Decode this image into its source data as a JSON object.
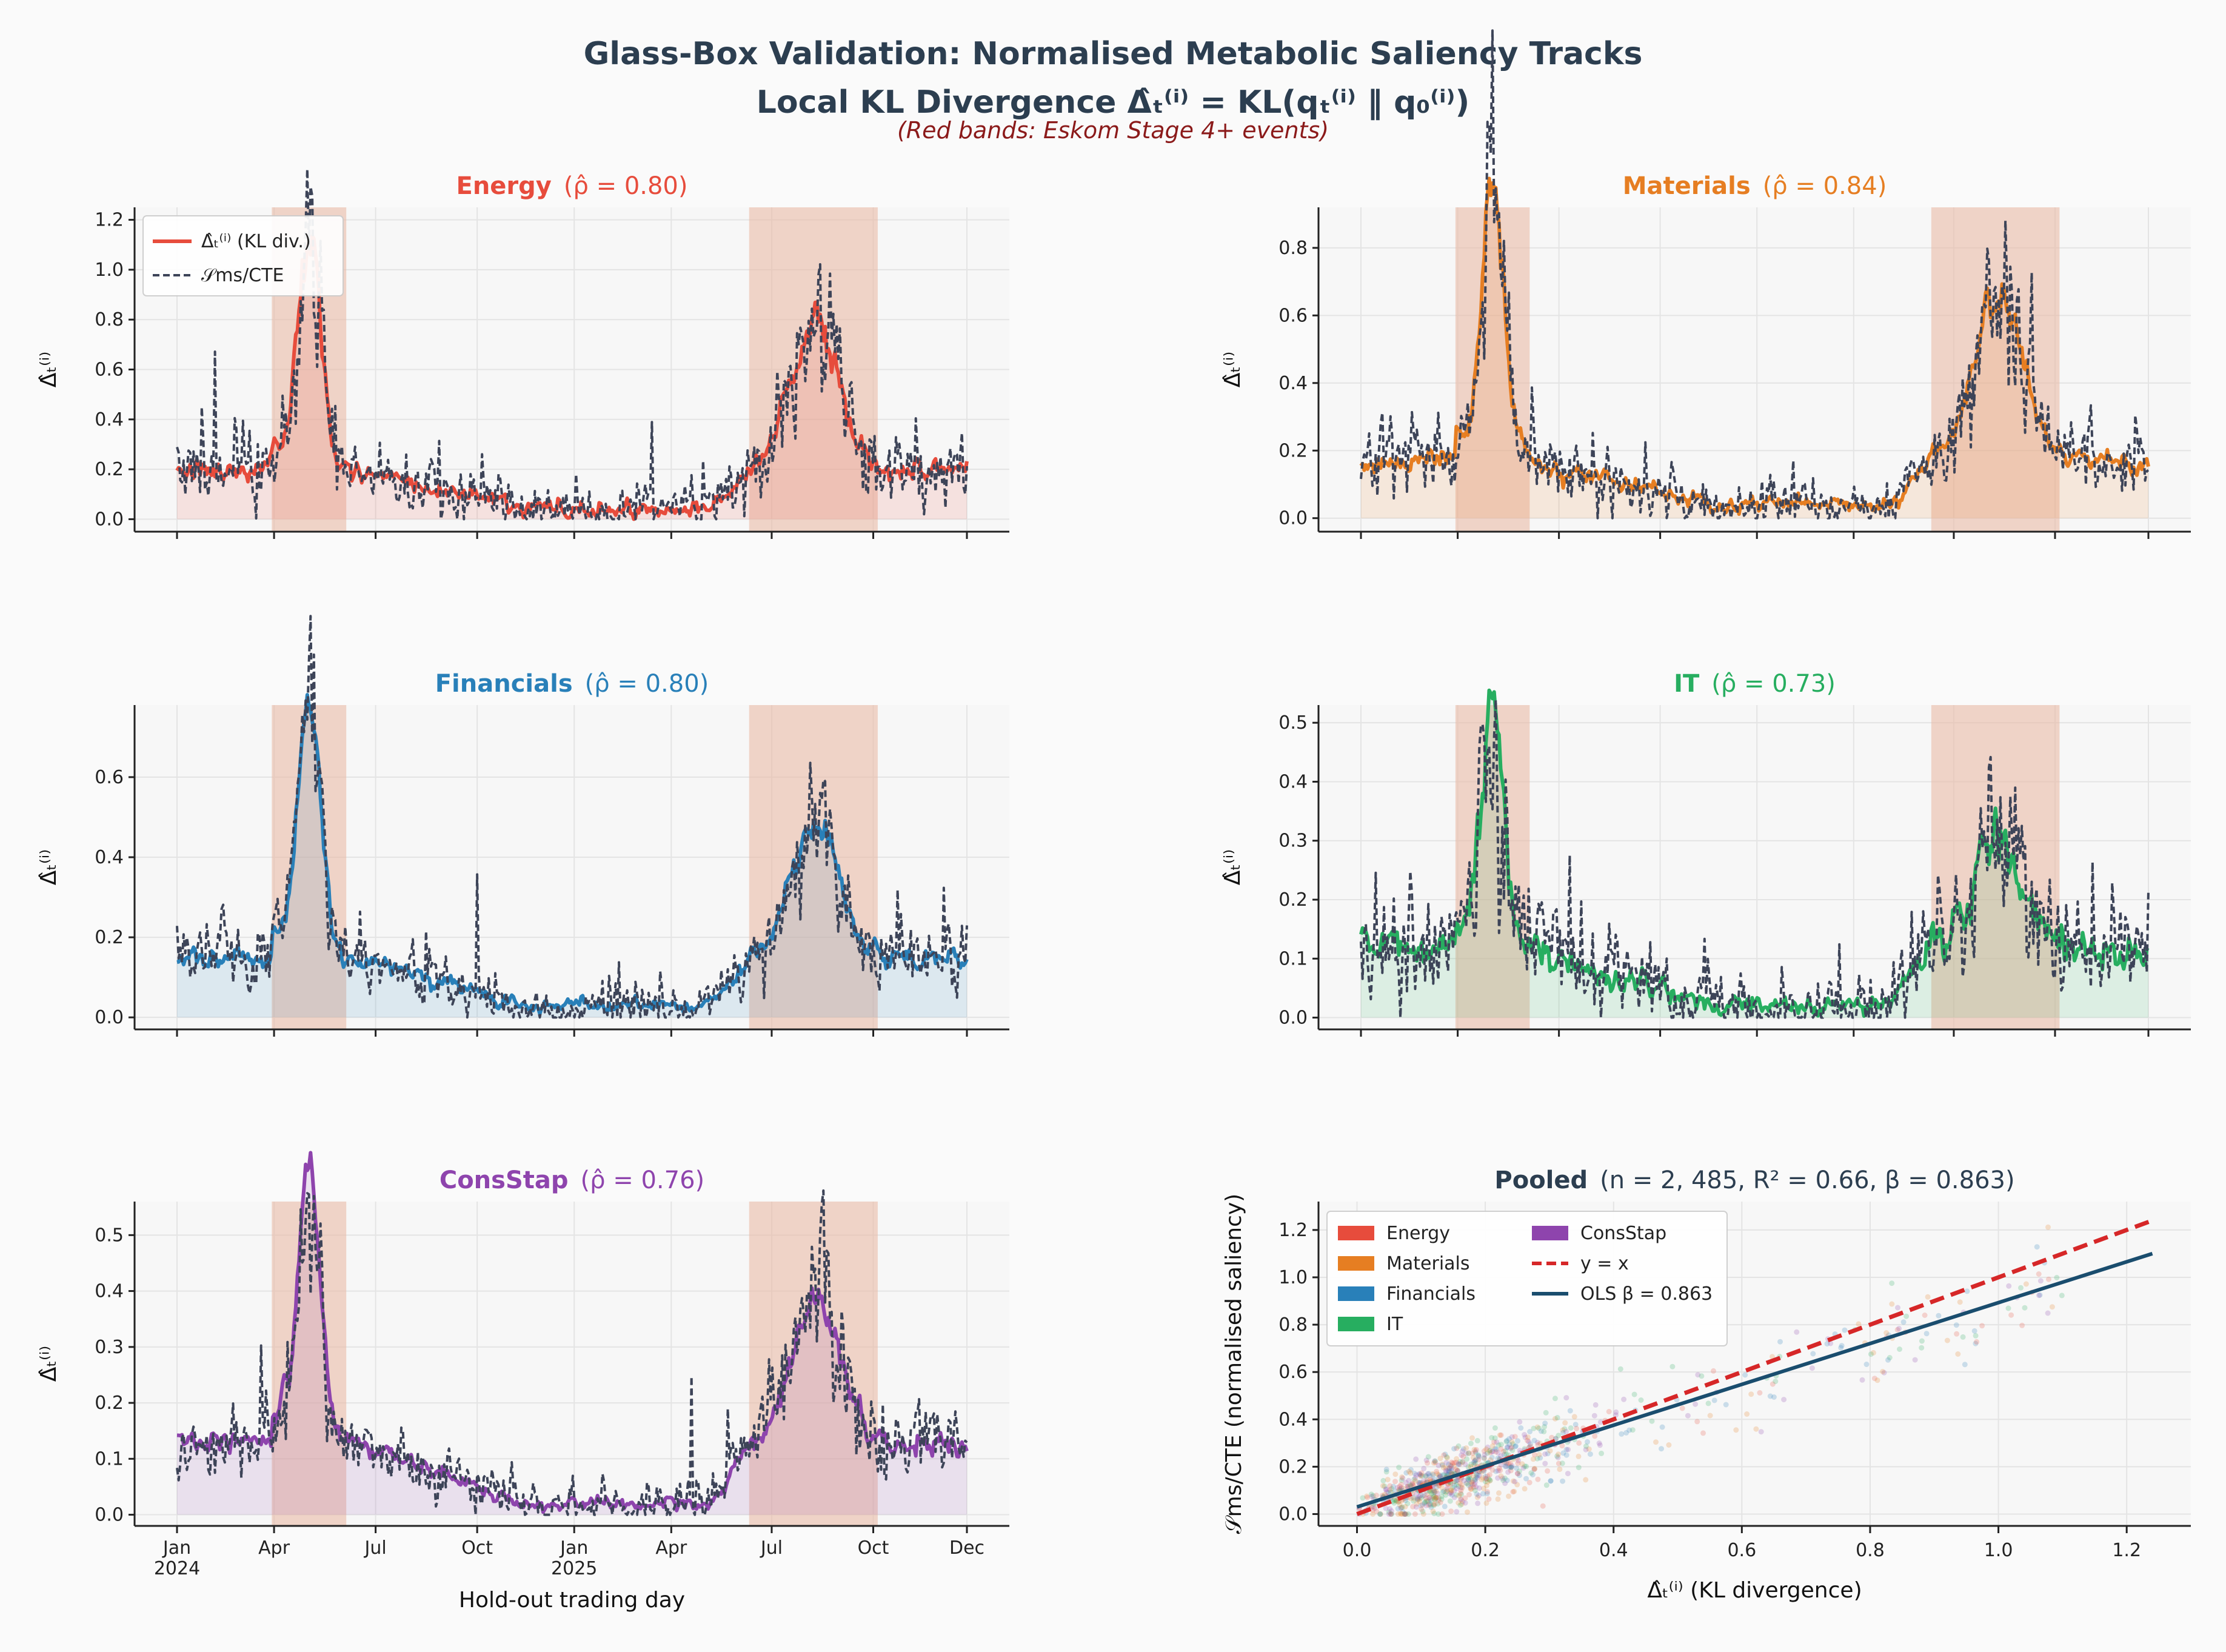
{
  "figure": {
    "title": "Glass-Box Validation: Normalised Metabolic Saliency Tracks",
    "subtitle": "Local KL Divergence  Δ̂ₜ⁽ⁱ⁾ = KL(qₜ⁽ⁱ⁾ ‖ q₀⁽ⁱ⁾)",
    "note": "(Red bands: Eskom Stage 4+ events)"
  },
  "colors": {
    "Energy": "#e74c3c",
    "Materials": "#e67e22",
    "Financials": "#2980b9",
    "IT": "#27ae60",
    "ConsStap": "#8e44ad",
    "saliency": "#3d4458",
    "band": "#e9b7a0",
    "panel_bg": "#f7f7f7",
    "ols": "#1a4d6e",
    "identity": "#d62728"
  },
  "chart_data": [
    {
      "type": "line",
      "sector": "Energy",
      "title": "Energy",
      "title_rho": "(ρ̂ = 0.80)",
      "ylabel": "Δ̂ₜ⁽ⁱ⁾",
      "ylim": [
        -0.05,
        1.25
      ],
      "yticks": [
        "0.0",
        "0.2",
        "0.4",
        "0.6",
        "0.8",
        "1.0",
        "1.2"
      ],
      "x_range_days": [
        0,
        700
      ],
      "stress_bands_days": [
        [
          84,
          150
        ],
        [
          507,
          621
        ]
      ],
      "baseline": 0.2,
      "peak1": 0.9,
      "peak2": 0.68,
      "low": 0.04,
      "noise": 0.12,
      "seed": 11,
      "legend": {
        "kl": "Δ̂ₜ⁽ⁱ⁾ (KL div.)",
        "saliency": "𝒮ms/CTE"
      }
    },
    {
      "type": "line",
      "sector": "Materials",
      "title": "Materials",
      "title_rho": "(ρ̂ = 0.84)",
      "ylabel": "Δ̂ₜ⁽ⁱ⁾",
      "ylim": [
        -0.04,
        0.92
      ],
      "yticks": [
        "0.0",
        "0.2",
        "0.4",
        "0.6",
        "0.8"
      ],
      "x_range_days": [
        0,
        700
      ],
      "stress_bands_days": [
        [
          84,
          150
        ],
        [
          507,
          621
        ]
      ],
      "baseline": 0.17,
      "peak1": 0.8,
      "peak2": 0.58,
      "low": 0.04,
      "noise": 0.09,
      "seed": 23
    },
    {
      "type": "line",
      "sector": "Financials",
      "title": "Financials",
      "title_rho": "(ρ̂ = 0.80)",
      "ylabel": "Δ̂ₜ⁽ⁱ⁾",
      "ylim": [
        -0.03,
        0.78
      ],
      "yticks": [
        "0.0",
        "0.2",
        "0.4",
        "0.6"
      ],
      "x_range_days": [
        0,
        700
      ],
      "stress_bands_days": [
        [
          84,
          150
        ],
        [
          507,
          621
        ]
      ],
      "baseline": 0.15,
      "peak1": 0.62,
      "peak2": 0.42,
      "low": 0.03,
      "noise": 0.07,
      "seed": 37
    },
    {
      "type": "line",
      "sector": "IT",
      "title": "IT",
      "title_rho": "(ρ̂ = 0.73)",
      "ylabel": "Δ̂ₜ⁽ⁱ⁾",
      "ylim": [
        -0.02,
        0.53
      ],
      "yticks": [
        "0.0",
        "0.1",
        "0.2",
        "0.3",
        "0.4",
        "0.5"
      ],
      "x_range_days": [
        0,
        700
      ],
      "stress_bands_days": [
        [
          84,
          150
        ],
        [
          507,
          621
        ]
      ],
      "baseline": 0.12,
      "peak1": 0.36,
      "peak2": 0.26,
      "low": 0.02,
      "noise": 0.07,
      "seed": 41
    },
    {
      "type": "line",
      "sector": "ConsStap",
      "title": "ConsStap",
      "title_rho": "(ρ̂ = 0.76)",
      "ylabel": "Δ̂ₜ⁽ⁱ⁾",
      "ylim": [
        -0.02,
        0.56
      ],
      "yticks": [
        "0.0",
        "0.1",
        "0.2",
        "0.3",
        "0.4",
        "0.5"
      ],
      "x_range_days": [
        0,
        700
      ],
      "stress_bands_days": [
        [
          84,
          150
        ],
        [
          507,
          621
        ]
      ],
      "baseline": 0.13,
      "peak1": 0.45,
      "peak2": 0.32,
      "low": 0.02,
      "noise": 0.05,
      "seed": 53,
      "xticks": [
        {
          "day": 0,
          "label": "Jan",
          "year": "2024"
        },
        {
          "day": 86,
          "label": "Apr",
          "year": ""
        },
        {
          "day": 176,
          "label": "Jul",
          "year": ""
        },
        {
          "day": 266,
          "label": "Oct",
          "year": ""
        },
        {
          "day": 352,
          "label": "Jan",
          "year": "2025"
        },
        {
          "day": 438,
          "label": "Apr",
          "year": ""
        },
        {
          "day": 527,
          "label": "Jul",
          "year": ""
        },
        {
          "day": 617,
          "label": "Oct",
          "year": ""
        },
        {
          "day": 700,
          "label": "Dec",
          "year": ""
        }
      ],
      "xlabel": "Hold-out trading day"
    },
    {
      "type": "scatter",
      "sector": "Pooled",
      "title": "Pooled",
      "title_stats": "(n = 2, 485,  R² = 0.66,  β = 0.863)",
      "xlabel": "Δ̂ₜ⁽ⁱ⁾ (KL divergence)",
      "ylabel": "𝒮ms/CTE (normalised saliency)",
      "xlim": [
        -0.06,
        1.3
      ],
      "ylim": [
        -0.05,
        1.32
      ],
      "xticks": [
        "0.0",
        "0.2",
        "0.4",
        "0.6",
        "0.8",
        "1.0",
        "1.2"
      ],
      "yticks": [
        "0.0",
        "0.2",
        "0.4",
        "0.6",
        "0.8",
        "1.0",
        "1.2"
      ],
      "n": 2485,
      "r2": 0.66,
      "ols": {
        "slope": 0.863,
        "intercept": 0.03,
        "label": "OLS β = 0.863"
      },
      "identity": {
        "label": "y = x"
      },
      "legend_sectors": [
        "Energy",
        "Materials",
        "Financials",
        "IT",
        "ConsStap"
      ]
    }
  ]
}
